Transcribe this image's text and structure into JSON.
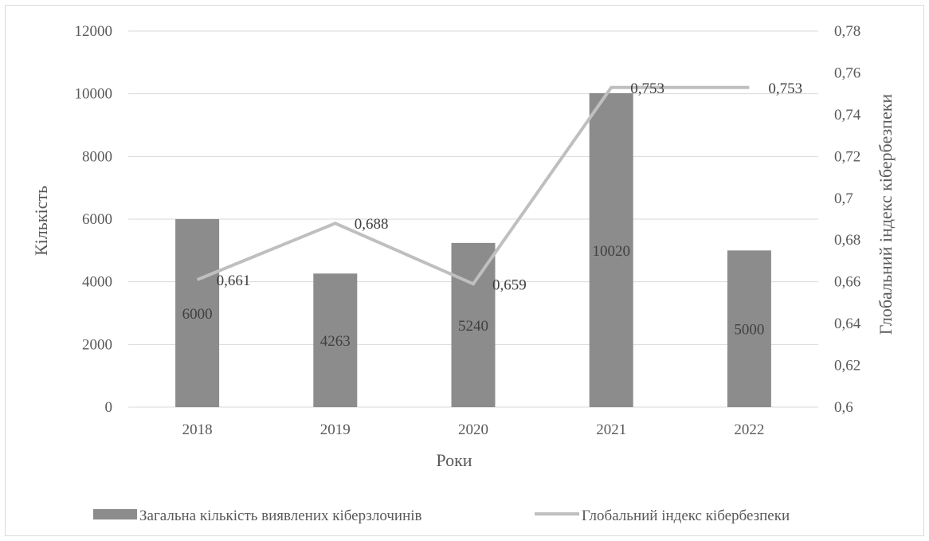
{
  "chart_data": {
    "type": "bar",
    "categories": [
      "2018",
      "2019",
      "2020",
      "2021",
      "2022"
    ],
    "xlabel": "Роки",
    "ylabel": "Кількість",
    "y2label": "Глобальний індекс кібербезпеки",
    "ylim": [
      0,
      12000
    ],
    "y2lim": [
      0.6,
      0.78
    ],
    "yticks": [
      "0",
      "2000",
      "4000",
      "6000",
      "8000",
      "10000",
      "12000"
    ],
    "y2ticks": [
      "0,6",
      "0,62",
      "0,64",
      "0,66",
      "0,68",
      "0,7",
      "0,72",
      "0,74",
      "0,76",
      "0,78"
    ],
    "grid": true,
    "legend_position": "bottom",
    "series": [
      {
        "name": "Загальна кількість виявлених кіберзлочинів",
        "type": "bar",
        "axis": "left",
        "color": "#8c8c8c",
        "values": [
          6000,
          4263,
          5240,
          10020,
          5000
        ],
        "labels": [
          "6000",
          "4263",
          "5240",
          "10020",
          "5000"
        ]
      },
      {
        "name": "Глобальний індекс кібербезпеки",
        "type": "line",
        "axis": "right",
        "color": "#bfbfbf",
        "values": [
          0.661,
          0.688,
          0.659,
          0.753,
          0.753
        ],
        "labels": [
          "0,661",
          "0,688",
          "0,659",
          "0,753",
          "0,753"
        ]
      }
    ]
  }
}
